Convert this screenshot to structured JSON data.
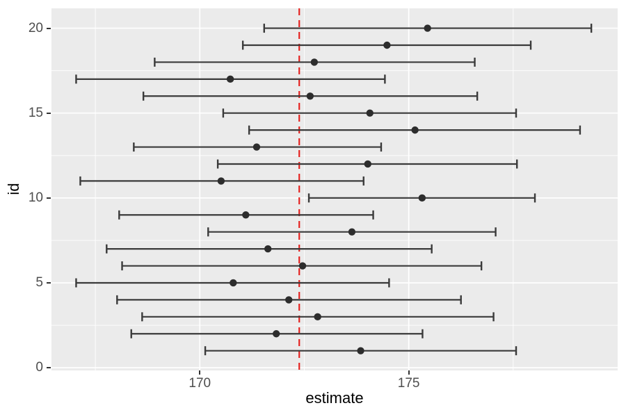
{
  "chart_data": {
    "type": "pointrange-errorbar",
    "title": "",
    "xlabel": "estimate",
    "ylabel": "id",
    "xlim": [
      166.45,
      180.0
    ],
    "ylim": [
      -0.16,
      21.17
    ],
    "x_major_ticks": [
      170,
      175
    ],
    "x_tick_labels": [
      "170",
      "175"
    ],
    "x_minor_ticks": [
      167.5,
      172.5,
      177.5
    ],
    "y_major_ticks": [
      0,
      5,
      10,
      15,
      20
    ],
    "y_tick_labels": [
      "0",
      "5",
      "10",
      "15",
      "20"
    ],
    "y_minor_ticks": [
      2.5,
      7.5,
      12.5,
      17.5
    ],
    "grid": true,
    "legend": "none",
    "panel_bg": "#ebebeb",
    "grid_color": "#ffffff",
    "bar_color": "#3a3a3a",
    "point_color": "#2d2d2d",
    "tick_mark_color": "#333333",
    "tick_label_color": "#4d4d4d",
    "axis_title_color": "#000000",
    "vline": {
      "x": 172.38,
      "color": "#e42320",
      "style": "dashed"
    },
    "points": [
      {
        "id": 1,
        "low": 170.13,
        "estimate": 173.85,
        "high": 177.57
      },
      {
        "id": 2,
        "low": 168.36,
        "estimate": 171.83,
        "high": 175.33
      },
      {
        "id": 3,
        "low": 168.62,
        "estimate": 172.82,
        "high": 177.03
      },
      {
        "id": 4,
        "low": 168.02,
        "estimate": 172.13,
        "high": 176.25
      },
      {
        "id": 5,
        "low": 167.04,
        "estimate": 170.8,
        "high": 174.53
      },
      {
        "id": 6,
        "low": 168.14,
        "estimate": 172.46,
        "high": 176.74
      },
      {
        "id": 7,
        "low": 167.77,
        "estimate": 171.63,
        "high": 175.55
      },
      {
        "id": 8,
        "low": 170.2,
        "estimate": 173.64,
        "high": 177.08
      },
      {
        "id": 9,
        "low": 168.07,
        "estimate": 171.1,
        "high": 174.15
      },
      {
        "id": 10,
        "low": 172.61,
        "estimate": 175.32,
        "high": 178.02
      },
      {
        "id": 11,
        "low": 167.14,
        "estimate": 170.51,
        "high": 173.92
      },
      {
        "id": 12,
        "low": 170.43,
        "estimate": 174.02,
        "high": 177.59
      },
      {
        "id": 13,
        "low": 168.42,
        "estimate": 171.36,
        "high": 174.34
      },
      {
        "id": 14,
        "low": 171.18,
        "estimate": 175.15,
        "high": 179.1
      },
      {
        "id": 15,
        "low": 170.56,
        "estimate": 174.07,
        "high": 177.57
      },
      {
        "id": 16,
        "low": 168.65,
        "estimate": 172.64,
        "high": 176.64
      },
      {
        "id": 17,
        "low": 167.04,
        "estimate": 170.73,
        "high": 174.43
      },
      {
        "id": 18,
        "low": 168.92,
        "estimate": 172.74,
        "high": 176.58
      },
      {
        "id": 19,
        "low": 171.03,
        "estimate": 174.48,
        "high": 177.92
      },
      {
        "id": 20,
        "low": 171.54,
        "estimate": 175.45,
        "high": 179.37
      }
    ]
  }
}
